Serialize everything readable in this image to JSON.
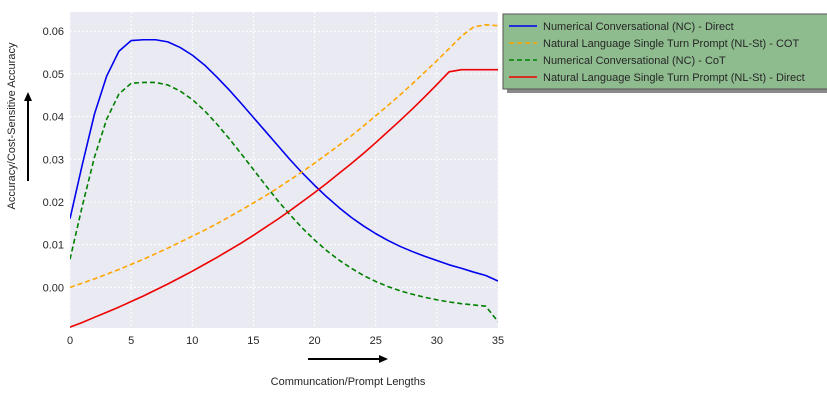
{
  "chart_data": {
    "type": "line",
    "title": "",
    "xlabel": "Communcation/Prompt Lengths",
    "ylabel": "Accuracy/Cost-Sensitive Accuracy",
    "xlim": [
      0,
      35
    ],
    "ylim": [
      -0.0095,
      0.0645
    ],
    "xticks": [
      0,
      5,
      10,
      15,
      20,
      25,
      30,
      35
    ],
    "yticks": [
      0.0,
      0.01,
      0.02,
      0.03,
      0.04,
      0.05,
      0.06
    ],
    "ytick_labels": [
      "0.00",
      "0.01",
      "0.02",
      "0.03",
      "0.04",
      "0.05",
      "0.06"
    ],
    "grid": true,
    "legend_placement": "outside-right-top",
    "legend_background": "#8fbc8f",
    "plot_background": "#eaeaf2",
    "x": [
      0,
      1,
      2,
      3,
      4,
      5,
      6,
      7,
      8,
      9,
      10,
      11,
      12,
      13,
      14,
      15,
      16,
      17,
      18,
      19,
      20,
      21,
      22,
      23,
      24,
      25,
      26,
      27,
      28,
      29,
      30,
      31,
      32,
      33,
      34,
      35
    ],
    "series": [
      {
        "name": "Numerical Conversational (NC) - Direct",
        "color": "#0000ee",
        "style": "solid",
        "values": [
          0.0161,
          0.0287,
          0.0406,
          0.0495,
          0.0553,
          0.0578,
          0.058,
          0.058,
          0.0575,
          0.0562,
          0.0544,
          0.0521,
          0.0493,
          0.0463,
          0.0431,
          0.0398,
          0.0365,
          0.0332,
          0.0299,
          0.0268,
          0.0239,
          0.0212,
          0.0187,
          0.0164,
          0.0144,
          0.0126,
          0.011,
          0.0096,
          0.0084,
          0.0073,
          0.0063,
          0.0053,
          0.0045,
          0.0036,
          0.0028,
          0.0015
        ]
      },
      {
        "name": "Natural Language Single Turn Prompt (NL-St) - COT",
        "color": "#ffa500",
        "style": "dashed",
        "values": [
          0.0,
          0.001,
          0.002,
          0.0031,
          0.0042,
          0.0054,
          0.0066,
          0.0079,
          0.0092,
          0.0106,
          0.012,
          0.0134,
          0.0149,
          0.0165,
          0.0181,
          0.0198,
          0.0215,
          0.0233,
          0.0252,
          0.0271,
          0.0291,
          0.0312,
          0.0333,
          0.0355,
          0.0378,
          0.0402,
          0.0426,
          0.0451,
          0.0477,
          0.0504,
          0.0531,
          0.0559,
          0.0588,
          0.061,
          0.0615,
          0.0613
        ]
      },
      {
        "name": "Numerical Conversational (NC) - CoT",
        "color": "#008000",
        "style": "dashed",
        "values": [
          0.0066,
          0.019,
          0.0305,
          0.0394,
          0.0453,
          0.0478,
          0.048,
          0.048,
          0.0474,
          0.046,
          0.044,
          0.0414,
          0.0383,
          0.0349,
          0.0313,
          0.0276,
          0.0239,
          0.0203,
          0.017,
          0.0139,
          0.0111,
          0.0086,
          0.0064,
          0.0045,
          0.0028,
          0.0014,
          0.0002,
          -0.0008,
          -0.0016,
          -0.0023,
          -0.0029,
          -0.0034,
          -0.0038,
          -0.0041,
          -0.0044,
          -0.008
        ]
      },
      {
        "name": "Natural Language Single Turn Prompt (NL-St) - Direct",
        "color": "#ee0000",
        "style": "solid",
        "values": [
          -0.0093,
          -0.0082,
          -0.007,
          -0.0058,
          -0.0046,
          -0.0033,
          -0.002,
          -0.0006,
          0.0008,
          0.0023,
          0.0038,
          0.0054,
          0.007,
          0.0087,
          0.0104,
          0.0122,
          0.0141,
          0.016,
          0.018,
          0.0201,
          0.0222,
          0.0244,
          0.0267,
          0.029,
          0.0314,
          0.0339,
          0.0365,
          0.0391,
          0.0418,
          0.0446,
          0.0475,
          0.0505,
          0.051,
          0.051,
          0.051,
          0.051
        ]
      }
    ]
  }
}
